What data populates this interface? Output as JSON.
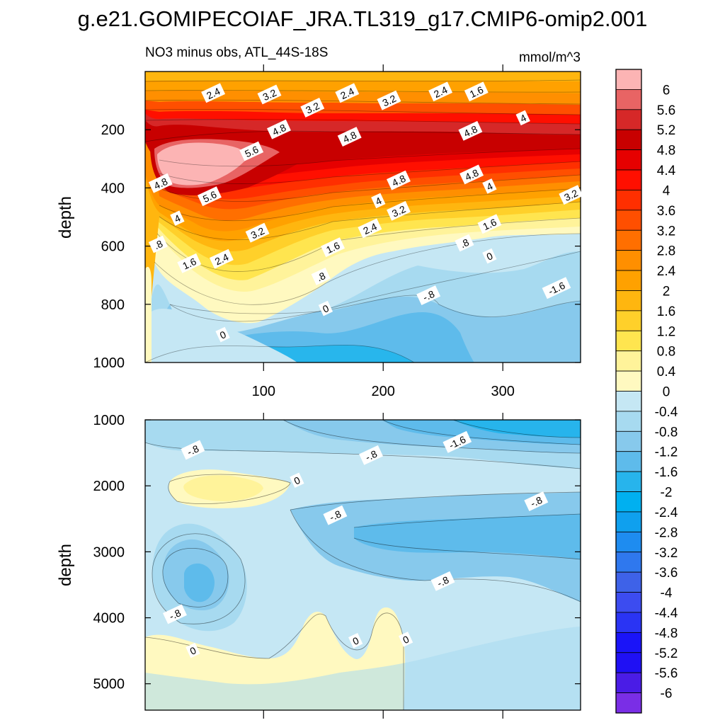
{
  "chart_data": {
    "type": "heatmap",
    "title": "g.e21.GOMIPECOIAF_JRA.TL319_g17.CMIP6-omip2.001",
    "subtitle_left": "NO3 minus obs, ATL_44S-18S",
    "subtitle_right": "mmol/m^3",
    "x_ticks": [
      "100",
      "200",
      "300"
    ],
    "x_tick_values": [
      100,
      200,
      300
    ],
    "xlim": [
      1,
      365
    ],
    "colorbar": {
      "labels": [
        "6",
        "5.6",
        "5.2",
        "4.8",
        "4.4",
        "4",
        "3.6",
        "3.2",
        "2.8",
        "2.4",
        "2",
        "1.6",
        "1.2",
        "0.8",
        "0.4",
        "0",
        "-0.4",
        "-0.8",
        "-1.2",
        "-1.6",
        "-2",
        "-2.4",
        "-2.8",
        "-3.2",
        "-3.6",
        "-4",
        "-4.4",
        "-4.8",
        "-5.2",
        "-5.6",
        "-6"
      ],
      "colors": [
        "#fcb4b4",
        "#e86464",
        "#d62828",
        "#c80000",
        "#e60000",
        "#ff0f00",
        "#ff2f00",
        "#ff4f00",
        "#ff6f00",
        "#ff8f00",
        "#ffa100",
        "#ffb60f",
        "#ffd02a",
        "#ffe54f",
        "#fff39a",
        "#fff9c0",
        "#c5e7f4",
        "#a7daf0",
        "#87c9ec",
        "#5ebbeb",
        "#27b4ec",
        "#00b0f0",
        "#0fa0ee",
        "#1e8cf0",
        "#2f78ee",
        "#3e62e8",
        "#3c4cf0",
        "#2a34f4",
        "#1a14f8",
        "#1f10f4",
        "#4a1ce6",
        "#7a2ee6"
      ]
    },
    "panels": [
      {
        "ylabel": "depth",
        "ylim": [
          0,
          1000
        ],
        "y_ticks": [
          "200",
          "400",
          "600",
          "800",
          "1000"
        ],
        "y_tick_values": [
          200,
          400,
          600,
          800,
          1000
        ],
        "contour_labels": [
          {
            "text": "2.4",
            "x": 58,
            "y": 75
          },
          {
            "text": "3.2",
            "x": 105,
            "y": 80
          },
          {
            "text": "3.2",
            "x": 141,
            "y": 125
          },
          {
            "text": "2.4",
            "x": 170,
            "y": 75
          },
          {
            "text": "3.2",
            "x": 205,
            "y": 100
          },
          {
            "text": "2.4",
            "x": 248,
            "y": 70
          },
          {
            "text": "1.6",
            "x": 278,
            "y": 70
          },
          {
            "text": "4",
            "x": 317,
            "y": 160
          },
          {
            "text": "4.8",
            "x": 113,
            "y": 200
          },
          {
            "text": "5.6",
            "x": 90,
            "y": 275
          },
          {
            "text": "4.8",
            "x": 172,
            "y": 225
          },
          {
            "text": "4.8",
            "x": 273,
            "y": 205
          },
          {
            "text": "4.8",
            "x": 14,
            "y": 385
          },
          {
            "text": "5.6",
            "x": 55,
            "y": 430
          },
          {
            "text": "4.8",
            "x": 213,
            "y": 375
          },
          {
            "text": "4.8",
            "x": 274,
            "y": 355
          },
          {
            "text": "4",
            "x": 196,
            "y": 445
          },
          {
            "text": "4",
            "x": 289,
            "y": 395
          },
          {
            "text": "3.2",
            "x": 357,
            "y": 425
          },
          {
            "text": "4",
            "x": 28,
            "y": 505
          },
          {
            "text": "3.2",
            "x": 213,
            "y": 480
          },
          {
            "text": "2.4",
            "x": 189,
            "y": 540
          },
          {
            "text": "1.6",
            "x": 289,
            "y": 525
          },
          {
            "text": "3.2",
            "x": 95,
            "y": 555
          },
          {
            "text": "1.6",
            "x": 158,
            "y": 605
          },
          {
            "text": ".8",
            "x": 268,
            "y": 590
          },
          {
            "text": "0",
            "x": 289,
            "y": 635
          },
          {
            "text": ".8",
            "x": 12,
            "y": 595
          },
          {
            "text": "1.6",
            "x": 38,
            "y": 660
          },
          {
            "text": "2.4",
            "x": 65,
            "y": 645
          },
          {
            "text": ".8",
            "x": 148,
            "y": 705
          },
          {
            "text": "-.8",
            "x": 238,
            "y": 770
          },
          {
            "text": "-1.6",
            "x": 345,
            "y": 745
          },
          {
            "text": "0",
            "x": 152,
            "y": 815
          },
          {
            "text": "0",
            "x": 66,
            "y": 905
          }
        ]
      },
      {
        "ylabel": "depth",
        "ylim": [
          1000,
          5400
        ],
        "y_ticks": [
          "1000",
          "2000",
          "3000",
          "4000",
          "5000"
        ],
        "y_tick_values": [
          1000,
          2000,
          3000,
          4000,
          5000
        ],
        "contour_labels": [
          {
            "text": "-.8",
            "x": 41,
            "y": 1460
          },
          {
            "text": "-.8",
            "x": 190,
            "y": 1540
          },
          {
            "text": "-1.6",
            "x": 262,
            "y": 1340
          },
          {
            "text": "0",
            "x": 128,
            "y": 1920
          },
          {
            "text": "-.8",
            "x": 328,
            "y": 2240
          },
          {
            "text": "-.8",
            "x": 160,
            "y": 2450
          },
          {
            "text": "-.8",
            "x": 250,
            "y": 3450
          },
          {
            "text": "-.8",
            "x": 26,
            "y": 3950
          },
          {
            "text": "0",
            "x": 41,
            "y": 4500
          },
          {
            "text": "0",
            "x": 177,
            "y": 4350
          },
          {
            "text": "0",
            "x": 219,
            "y": 4330
          }
        ]
      }
    ]
  }
}
